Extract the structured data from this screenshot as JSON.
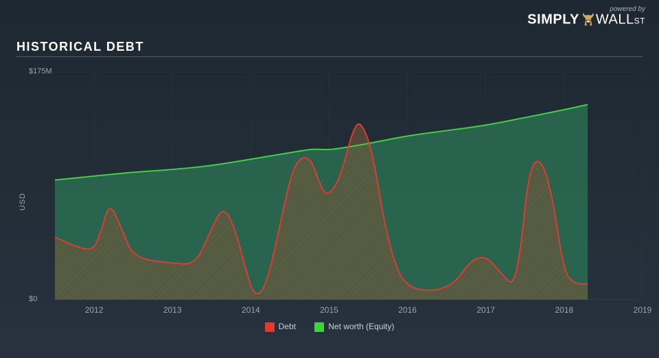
{
  "branding": {
    "powered": "powered by",
    "name_simply": "SIMPLY",
    "name_wall": "WALL",
    "name_st": "ST"
  },
  "title": "HISTORICAL DEBT",
  "chart": {
    "type": "area",
    "background_color": "#232d38",
    "ylabel": "USD",
    "ylim": [
      0,
      175
    ],
    "yticks": [
      {
        "val": 175,
        "label": "$175M"
      },
      {
        "val": 0,
        "label": "$0"
      }
    ],
    "xlim": [
      2011.5,
      2019
    ],
    "xticks": [
      2012,
      2013,
      2014,
      2015,
      2016,
      2017,
      2018,
      2019
    ],
    "gridline_color": "#3a4550",
    "label_color": "#9aa5b0",
    "label_fontsize": 11,
    "series": {
      "equity": {
        "label": "Net worth (Equity)",
        "stroke": "#3fd13f",
        "fill": "#2a6d52",
        "fill_opacity": 0.85,
        "stroke_width": 2,
        "points": [
          [
            2011.5,
            92
          ],
          [
            2012.0,
            95
          ],
          [
            2012.5,
            98
          ],
          [
            2013.0,
            100
          ],
          [
            2013.5,
            103
          ],
          [
            2014.0,
            108
          ],
          [
            2014.5,
            113
          ],
          [
            2014.8,
            116
          ],
          [
            2015.0,
            115
          ],
          [
            2015.3,
            118
          ],
          [
            2015.5,
            120
          ],
          [
            2016.0,
            126
          ],
          [
            2016.5,
            130
          ],
          [
            2017.0,
            134
          ],
          [
            2017.5,
            140
          ],
          [
            2018.0,
            146
          ],
          [
            2018.3,
            150
          ]
        ]
      },
      "debt": {
        "label": "Debt",
        "stroke": "#e13a2f",
        "fill": "#7a5a3a",
        "fill_opacity": 0.75,
        "stroke_width": 2,
        "hatched": true,
        "points": [
          [
            2011.5,
            48
          ],
          [
            2011.8,
            40
          ],
          [
            2012.0,
            38
          ],
          [
            2012.1,
            55
          ],
          [
            2012.2,
            75
          ],
          [
            2012.35,
            55
          ],
          [
            2012.5,
            32
          ],
          [
            2013.0,
            28
          ],
          [
            2013.3,
            27
          ],
          [
            2013.5,
            55
          ],
          [
            2013.65,
            72
          ],
          [
            2013.8,
            55
          ],
          [
            2013.95,
            20
          ],
          [
            2014.05,
            2
          ],
          [
            2014.2,
            10
          ],
          [
            2014.4,
            65
          ],
          [
            2014.55,
            105
          ],
          [
            2014.75,
            112
          ],
          [
            2014.9,
            85
          ],
          [
            2015.0,
            80
          ],
          [
            2015.15,
            95
          ],
          [
            2015.3,
            130
          ],
          [
            2015.4,
            138
          ],
          [
            2015.55,
            115
          ],
          [
            2015.7,
            60
          ],
          [
            2015.85,
            25
          ],
          [
            2016.0,
            10
          ],
          [
            2016.3,
            6
          ],
          [
            2016.6,
            12
          ],
          [
            2016.8,
            30
          ],
          [
            2017.0,
            34
          ],
          [
            2017.2,
            20
          ],
          [
            2017.35,
            10
          ],
          [
            2017.45,
            40
          ],
          [
            2017.55,
            100
          ],
          [
            2017.7,
            110
          ],
          [
            2017.85,
            80
          ],
          [
            2018.0,
            20
          ],
          [
            2018.15,
            12
          ],
          [
            2018.3,
            12
          ]
        ]
      }
    },
    "legend_text_color": "#c8d0d8"
  }
}
